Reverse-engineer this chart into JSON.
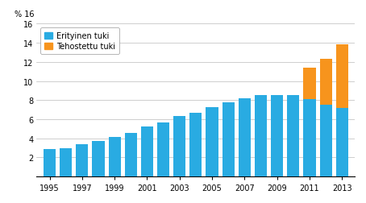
{
  "years": [
    1995,
    1996,
    1997,
    1998,
    1999,
    2000,
    2001,
    2002,
    2003,
    2004,
    2005,
    2006,
    2007,
    2008,
    2009,
    2010,
    2011,
    2012,
    2013
  ],
  "erityinen": [
    2.9,
    3.0,
    3.4,
    3.7,
    4.1,
    4.6,
    5.2,
    5.7,
    6.3,
    6.7,
    7.3,
    7.8,
    8.2,
    8.5,
    8.5,
    8.5,
    8.1,
    7.5,
    7.2
  ],
  "tehostettu": [
    0,
    0,
    0,
    0,
    0,
    0,
    0,
    0,
    0,
    0,
    0,
    0,
    0,
    0,
    0,
    0,
    3.3,
    4.8,
    6.6
  ],
  "erityinen_color": "#29ABE2",
  "tehostettu_color": "#F7941D",
  "ylim": [
    0,
    16
  ],
  "yticks": [
    0,
    2,
    4,
    6,
    8,
    10,
    12,
    14,
    16
  ],
  "xtick_years": [
    1995,
    1997,
    1999,
    2001,
    2003,
    2005,
    2007,
    2009,
    2011,
    2013
  ],
  "xtick_labels": [
    "1995",
    "1997",
    "1999",
    "2001",
    "2003",
    "2005",
    "2007",
    "2009",
    "2011",
    "2013"
  ],
  "legend_erityinen": "Erityinen tuki",
  "legend_tehostettu": "Tehostettu tuki",
  "ylabel_text": "% 16",
  "grid_color": "#bbbbbb",
  "bar_width": 0.75
}
